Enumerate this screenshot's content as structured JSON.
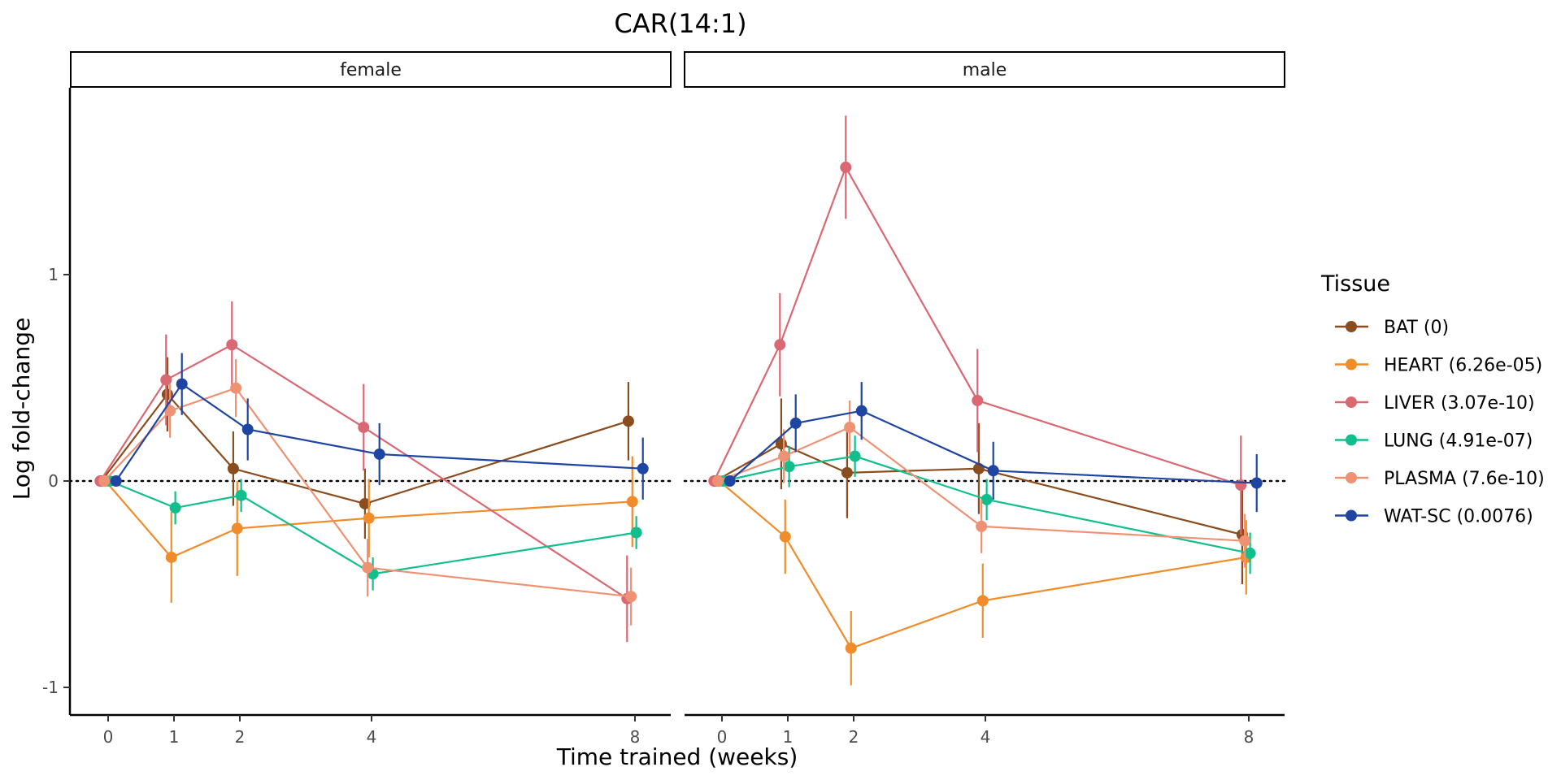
{
  "chart_data": {
    "type": "line",
    "title": "CAR(14:1)",
    "xlabel": "Time trained (weeks)",
    "ylabel": "Log fold-change",
    "x_ticks": [
      0,
      1,
      2,
      4,
      8
    ],
    "y_ticks": [
      -1,
      0,
      1
    ],
    "y_tick_labels": [
      "-1",
      "0",
      "1"
    ],
    "ylim": [
      -1.13,
      1.9
    ],
    "reference_line": 0,
    "legend_title": "Tissue",
    "legend_position": "right",
    "grid": false,
    "panels": [
      {
        "label": "female",
        "series": [
          {
            "name": "BAT (0)",
            "color": "#8B4C1E",
            "x": [
              0,
              1,
              2,
              4,
              8
            ],
            "y": [
              0,
              0.42,
              0.06,
              -0.11,
              0.29
            ],
            "err": [
              0,
              0.18,
              0.18,
              0.17,
              0.19
            ]
          },
          {
            "name": "HEART (6.26e-05)",
            "color": "#F08C2A",
            "x": [
              0,
              1,
              2,
              4,
              8
            ],
            "y": [
              0,
              -0.37,
              -0.23,
              -0.18,
              -0.1
            ],
            "err": [
              0,
              0.22,
              0.23,
              0.19,
              0.22
            ]
          },
          {
            "name": "LIVER (3.07e-10)",
            "color": "#D96872",
            "x": [
              0,
              1,
              2,
              4,
              8
            ],
            "y": [
              0,
              0.49,
              0.66,
              0.26,
              -0.57
            ],
            "err": [
              0,
              0.22,
              0.21,
              0.21,
              0.21
            ]
          },
          {
            "name": "LUNG (4.91e-07)",
            "color": "#12BF8C",
            "x": [
              0,
              1,
              2,
              4,
              8
            ],
            "y": [
              0,
              -0.13,
              -0.07,
              -0.45,
              -0.25
            ],
            "err": [
              0,
              0.08,
              0.08,
              0.08,
              0.08
            ]
          },
          {
            "name": "PLASMA (7.6e-10)",
            "color": "#EE9273",
            "x": [
              0,
              1,
              2,
              4,
              8
            ],
            "y": [
              0,
              0.34,
              0.45,
              -0.42,
              -0.56
            ],
            "err": [
              0,
              0.13,
              0.14,
              0.14,
              0.14
            ]
          },
          {
            "name": "WAT-SC (0.0076)",
            "color": "#1F45A3",
            "x": [
              0,
              1,
              2,
              4,
              8
            ],
            "y": [
              0,
              0.47,
              0.25,
              0.13,
              0.06
            ],
            "err": [
              0,
              0.15,
              0.15,
              0.15,
              0.15
            ]
          }
        ]
      },
      {
        "label": "male",
        "series": [
          {
            "name": "BAT (0)",
            "color": "#8B4C1E",
            "x": [
              0,
              1,
              2,
              4,
              8
            ],
            "y": [
              0,
              0.18,
              0.04,
              0.06,
              -0.26
            ],
            "err": [
              0,
              0.22,
              0.22,
              0.22,
              0.24
            ]
          },
          {
            "name": "HEART (6.26e-05)",
            "color": "#F08C2A",
            "x": [
              0,
              1,
              2,
              4,
              8
            ],
            "y": [
              0,
              -0.27,
              -0.81,
              -0.58,
              -0.37
            ],
            "err": [
              0,
              0.18,
              0.18,
              0.18,
              0.18
            ]
          },
          {
            "name": "LIVER (3.07e-10)",
            "color": "#D96872",
            "x": [
              0,
              1,
              2,
              4,
              8
            ],
            "y": [
              0,
              0.66,
              1.52,
              0.39,
              -0.02
            ],
            "err": [
              0,
              0.25,
              0.25,
              0.25,
              0.24
            ]
          },
          {
            "name": "LUNG (4.91e-07)",
            "color": "#12BF8C",
            "x": [
              0,
              1,
              2,
              4,
              8
            ],
            "y": [
              0,
              0.07,
              0.12,
              -0.09,
              -0.35
            ],
            "err": [
              0,
              0.1,
              0.1,
              0.1,
              0.1
            ]
          },
          {
            "name": "PLASMA (7.6e-10)",
            "color": "#EE9273",
            "x": [
              0,
              1,
              2,
              4,
              8
            ],
            "y": [
              0,
              0.12,
              0.26,
              -0.22,
              -0.29
            ],
            "err": [
              0,
              0.13,
              0.13,
              0.13,
              0.13
            ]
          },
          {
            "name": "WAT-SC (0.0076)",
            "color": "#1F45A3",
            "x": [
              0,
              1,
              2,
              4,
              8
            ],
            "y": [
              0,
              0.28,
              0.34,
              0.05,
              -0.01
            ],
            "err": [
              0,
              0.14,
              0.14,
              0.14,
              0.14
            ]
          }
        ]
      }
    ]
  }
}
